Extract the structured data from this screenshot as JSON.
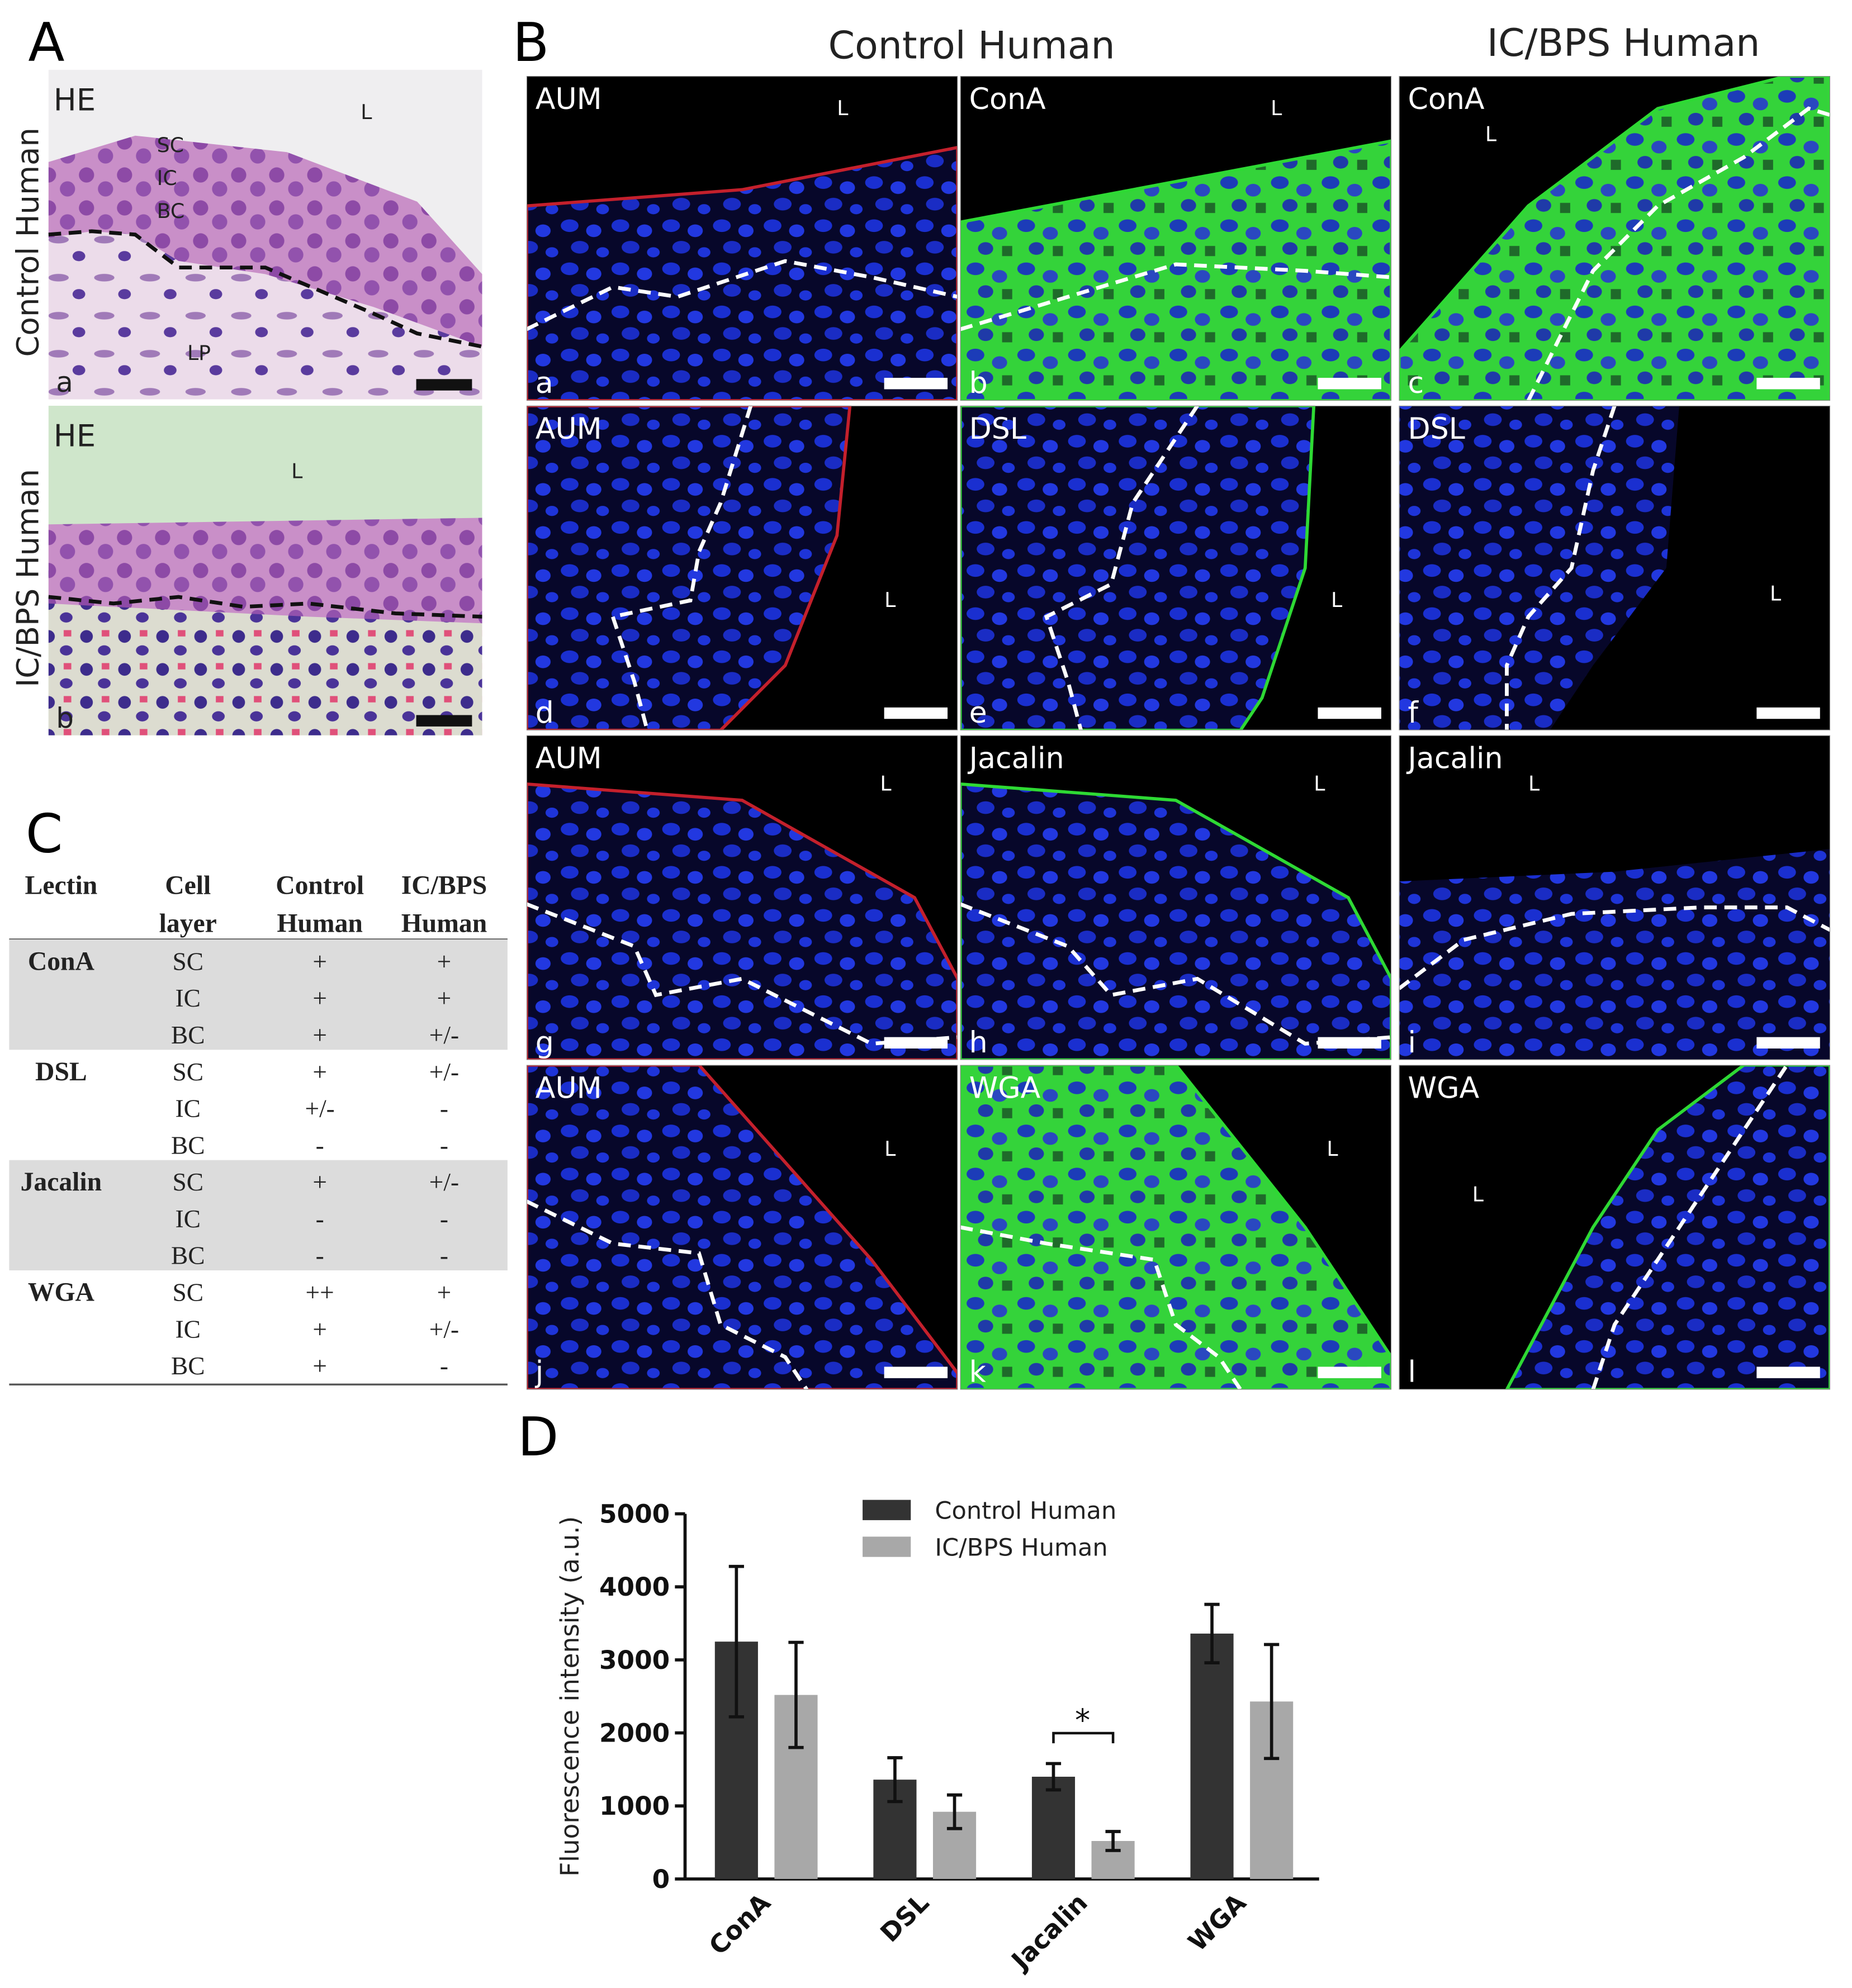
{
  "panel_a": {
    "letter": "A",
    "images": [
      {
        "stain": "HE",
        "lumen": "L",
        "layers": [
          "SC",
          "IC",
          "BC"
        ],
        "lamina": "LP",
        "letter": "a",
        "side_label": "Control Human"
      },
      {
        "stain": "HE",
        "lumen": "L",
        "letter": "b",
        "side_label": "IC/BPS Human"
      }
    ]
  },
  "panel_b": {
    "letter": "B",
    "column_headers": [
      "Control Human",
      "IC/BPS Human"
    ],
    "images": [
      {
        "stain": "AUM",
        "lumen": "L",
        "letter": "a"
      },
      {
        "stain": "ConA",
        "lumen": "L",
        "letter": "b"
      },
      {
        "stain": "ConA",
        "lumen": "L",
        "letter": "c"
      },
      {
        "stain": "AUM",
        "lumen": "L",
        "letter": "d"
      },
      {
        "stain": "DSL",
        "lumen": "L",
        "letter": "e"
      },
      {
        "stain": "DSL",
        "lumen": "L",
        "letter": "f"
      },
      {
        "stain": "AUM",
        "lumen": "L",
        "letter": "g"
      },
      {
        "stain": "Jacalin",
        "lumen": "L",
        "letter": "h"
      },
      {
        "stain": "Jacalin",
        "lumen": "L",
        "letter": "i"
      },
      {
        "stain": "AUM",
        "lumen": "L",
        "letter": "j"
      },
      {
        "stain": "WGA",
        "lumen": "L",
        "letter": "k"
      },
      {
        "stain": "WGA",
        "lumen": "L",
        "letter": "l"
      }
    ]
  },
  "panel_c": {
    "letter": "C",
    "table": {
      "header": [
        [
          "Lectin"
        ],
        [
          "Cell",
          "layer"
        ],
        [
          "Control",
          "Human"
        ],
        [
          "IC/BPS",
          "Human"
        ]
      ],
      "groups": [
        {
          "lectin": "ConA",
          "rows": [
            [
              "SC",
              "+",
              "+"
            ],
            [
              "IC",
              "+",
              "+"
            ],
            [
              "BC",
              "+",
              "+/-"
            ]
          ]
        },
        {
          "lectin": "DSL",
          "rows": [
            [
              "SC",
              "+",
              "+/-"
            ],
            [
              "IC",
              "+/-",
              "-"
            ],
            [
              "BC",
              "-",
              "-"
            ]
          ]
        },
        {
          "lectin": "Jacalin",
          "rows": [
            [
              "SC",
              "+",
              "+/-"
            ],
            [
              "IC",
              "-",
              "-"
            ],
            [
              "BC",
              "-",
              "-"
            ]
          ]
        },
        {
          "lectin": "WGA",
          "rows": [
            [
              "SC",
              "++",
              "+"
            ],
            [
              "IC",
              "+",
              "+/-"
            ],
            [
              "BC",
              "+",
              "-"
            ]
          ]
        }
      ]
    }
  },
  "panel_d_letter": "D",
  "chart_data": {
    "type": "bar",
    "y_label": "Fluorescence intensity (a.u.)",
    "categories": [
      "ConA",
      "DSL",
      "Jacalin",
      "WGA"
    ],
    "series": [
      {
        "name": "Control Human",
        "color": "#333333",
        "values": [
          3250,
          1360,
          1400,
          3360
        ],
        "errors": [
          1030,
          300,
          180,
          400
        ]
      },
      {
        "name": "IC/BPS Human",
        "color": "#a8a8a8",
        "values": [
          2520,
          920,
          520,
          2430
        ],
        "errors": [
          720,
          230,
          130,
          780
        ]
      }
    ],
    "ylim": [
      0,
      5000
    ],
    "yticks": [
      0,
      1000,
      2000,
      3000,
      4000,
      5000
    ],
    "significance_label": "*"
  }
}
